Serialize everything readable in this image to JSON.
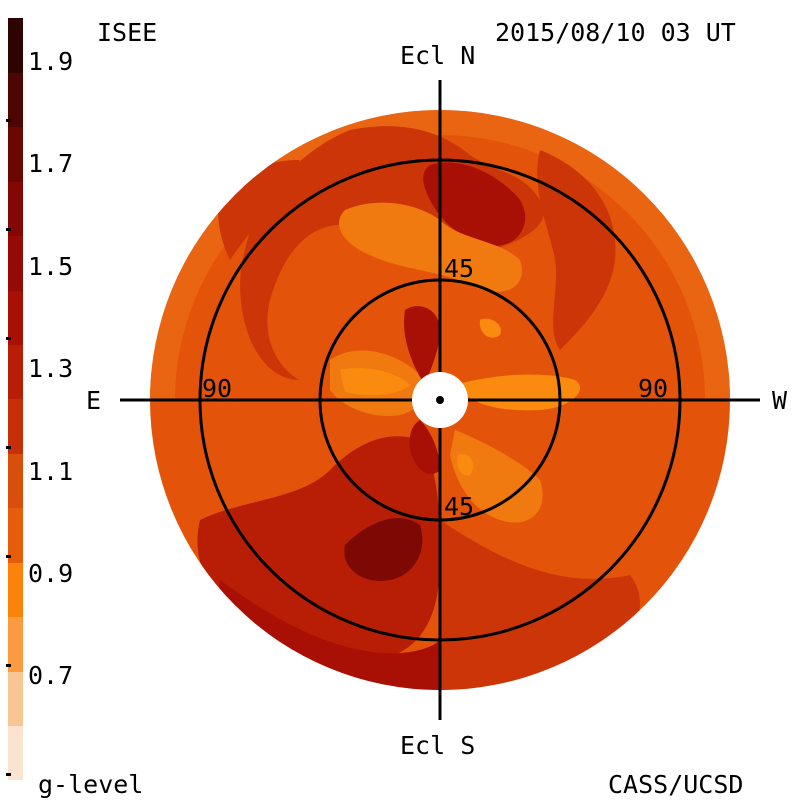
{
  "header": {
    "source": "ISEE",
    "timestamp": "2015/08/10 03 UT",
    "credit": "CASS/UCSD",
    "legend_title": "g-level"
  },
  "map": {
    "north_label": "Ecl N",
    "south_label": "Ecl S",
    "east_label": "E",
    "west_label": "W",
    "ring_inner_top_label": "45",
    "ring_inner_bottom_label": "45",
    "ring_outer_left_label": "90",
    "ring_outer_right_label": "90"
  },
  "colorbar": {
    "range": [
      0.6,
      2.0
    ],
    "tick_labels": [
      "1.9",
      "1.7",
      "1.5",
      "1.3",
      "1.1",
      "0.9",
      "0.7"
    ],
    "bands": [
      {
        "min": 0.6,
        "max": 0.7,
        "color": "#fbe3cf"
      },
      {
        "min": 0.7,
        "max": 0.8,
        "color": "#f8c594"
      },
      {
        "min": 0.8,
        "max": 0.9,
        "color": "#fb9a3e"
      },
      {
        "min": 0.9,
        "max": 1.0,
        "color": "#fc8309"
      },
      {
        "min": 1.0,
        "max": 1.1,
        "color": "#e55c0a"
      },
      {
        "min": 1.1,
        "max": 1.2,
        "color": "#d84e0b"
      },
      {
        "min": 1.2,
        "max": 1.3,
        "color": "#c72f08"
      },
      {
        "min": 1.3,
        "max": 1.4,
        "color": "#b81e05"
      },
      {
        "min": 1.4,
        "max": 1.5,
        "color": "#a80f05"
      },
      {
        "min": 1.5,
        "max": 1.6,
        "color": "#960a05"
      },
      {
        "min": 1.6,
        "max": 1.7,
        "color": "#830805"
      },
      {
        "min": 1.7,
        "max": 1.8,
        "color": "#6a0703"
      },
      {
        "min": 1.8,
        "max": 1.9,
        "color": "#4e0602"
      },
      {
        "min": 1.9,
        "max": 2.0,
        "color": "#2e0401"
      }
    ]
  },
  "colors": {
    "background": "#ffffff",
    "disk_base": "#e3540a",
    "orange_mid": "#f07a10",
    "light_orange": "#fb8b0e",
    "red_mid": "#cc3508",
    "red_dark": "#a80f05",
    "maroon": "#7d0905",
    "axis": "#000000"
  }
}
